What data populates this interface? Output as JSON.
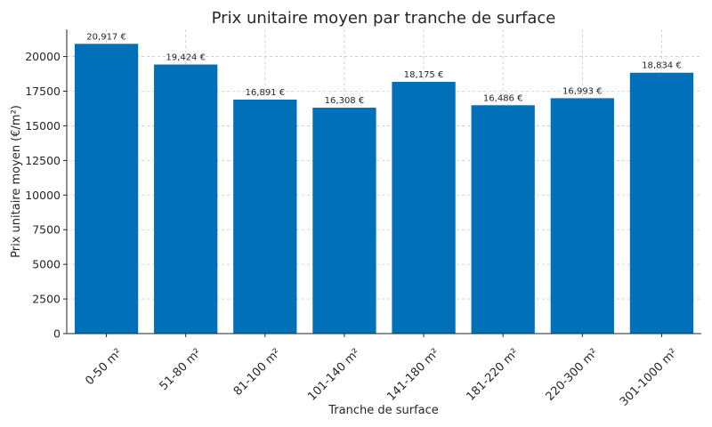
{
  "chart_data": {
    "type": "bar",
    "title": "Prix unitaire moyen par tranche de surface",
    "xlabel": "Tranche de surface",
    "ylabel": "Prix unitaire moyen (€/m²)",
    "categories": [
      "0-50 m²",
      "51-80 m²",
      "81-100 m²",
      "101-140 m²",
      "141-180 m²",
      "181-220 m²",
      "220-300 m²",
      "301-1000 m²"
    ],
    "values": [
      20917,
      19424,
      16891,
      16308,
      18175,
      16486,
      16993,
      18834
    ],
    "value_labels": [
      "20,917 €",
      "19,424 €",
      "16,891 €",
      "16,308 €",
      "18,175 €",
      "16,486 €",
      "16,993 €",
      "18,834 €"
    ],
    "yticks": [
      0,
      2500,
      5000,
      7500,
      10000,
      12500,
      15000,
      17500,
      20000
    ],
    "ytick_labels": [
      "0",
      "2500",
      "5000",
      "7500",
      "10000",
      "12500",
      "15000",
      "17500",
      "20000"
    ],
    "ylim": [
      0,
      21963
    ],
    "grid": true,
    "bar_color": "#0070b8",
    "legend": "none"
  }
}
